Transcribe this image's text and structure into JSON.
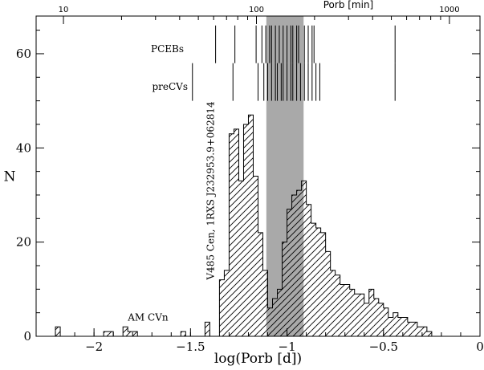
{
  "chart_data": {
    "type": "histogram",
    "xlabel": "log(Porb [d])",
    "ylabel": "N",
    "top_axis_label": "Porb [min]",
    "xlim": [
      -2.3,
      0.0
    ],
    "ylim": [
      0,
      68
    ],
    "x_ticks": [
      -2,
      -1.5,
      -1,
      -0.5,
      0
    ],
    "x_tick_labels": [
      "−2",
      "−1.5",
      "−1",
      "−0.5",
      "0"
    ],
    "y_ticks": [
      0,
      20,
      40,
      60
    ],
    "y_tick_labels": [
      "0",
      "20",
      "40",
      "60"
    ],
    "top_ticks_min": [
      10,
      100,
      1000
    ],
    "top_tick_labels": [
      "10",
      "100",
      "1000"
    ],
    "bin_width": 0.025,
    "bin_start": -2.2,
    "counts": [
      2,
      0,
      0,
      0,
      0,
      0,
      0,
      0,
      0,
      0,
      1,
      1,
      0,
      0,
      2,
      1,
      1,
      0,
      0,
      0,
      0,
      0,
      0,
      0,
      0,
      0,
      1,
      0,
      0,
      0,
      0,
      3,
      0,
      0,
      12,
      14,
      43,
      44,
      33,
      45,
      47,
      34,
      22,
      14,
      6,
      8,
      10,
      20,
      27,
      30,
      31,
      33,
      28,
      24,
      23,
      22,
      18,
      14,
      13,
      11,
      11,
      10,
      9,
      9,
      7,
      10,
      8,
      7,
      6,
      4,
      5,
      4,
      4,
      3,
      3,
      2,
      2,
      1
    ],
    "series": [
      {
        "values": [
          2,
          0,
          0,
          0,
          0,
          0,
          0,
          0,
          0,
          0,
          1,
          1,
          0,
          0,
          2,
          1,
          1,
          0,
          0,
          0,
          0,
          0,
          0,
          0,
          0,
          0,
          1,
          0,
          0,
          0,
          0,
          3,
          0,
          0,
          12,
          14,
          43,
          44,
          33,
          45,
          47,
          34,
          22,
          14,
          6,
          8,
          10,
          20,
          27,
          30,
          31,
          33,
          28,
          24,
          23,
          22,
          18,
          14,
          13,
          11,
          11,
          10,
          9,
          9,
          7,
          10,
          8,
          7,
          6,
          4,
          5,
          4,
          4,
          3,
          3,
          2,
          2,
          1
        ]
      }
    ],
    "shaded_region": {
      "x_from": -1.107,
      "x_to": -0.914
    },
    "pceb_lines": [
      -1.37,
      -1.27,
      -1.16,
      -1.13,
      -1.11,
      -1.09,
      -1.08,
      -1.06,
      -1.04,
      -1.02,
      -1.0,
      -0.98,
      -0.97,
      -0.95,
      -0.94,
      -0.91,
      -0.89,
      -0.87,
      -0.86,
      -0.44
    ],
    "precv_lines": [
      -1.49,
      -1.28,
      -1.15,
      -1.12,
      -1.1,
      -1.08,
      -1.06,
      -1.05,
      -1.03,
      -1.02,
      -1.0,
      -0.98,
      -0.97,
      -0.95,
      -0.93,
      -0.91,
      -0.89,
      -0.87,
      -0.85,
      -0.83,
      -0.44
    ],
    "pceb_y_range": [
      58,
      66
    ],
    "precv_y_range": [
      50,
      58
    ],
    "annotations": {
      "pcebs": "PCEBs",
      "precvs": "preCVs",
      "am_cvn": "AM CVn",
      "rotated_label": "V485 Cen, 1RXS J232953.9+062814"
    }
  }
}
